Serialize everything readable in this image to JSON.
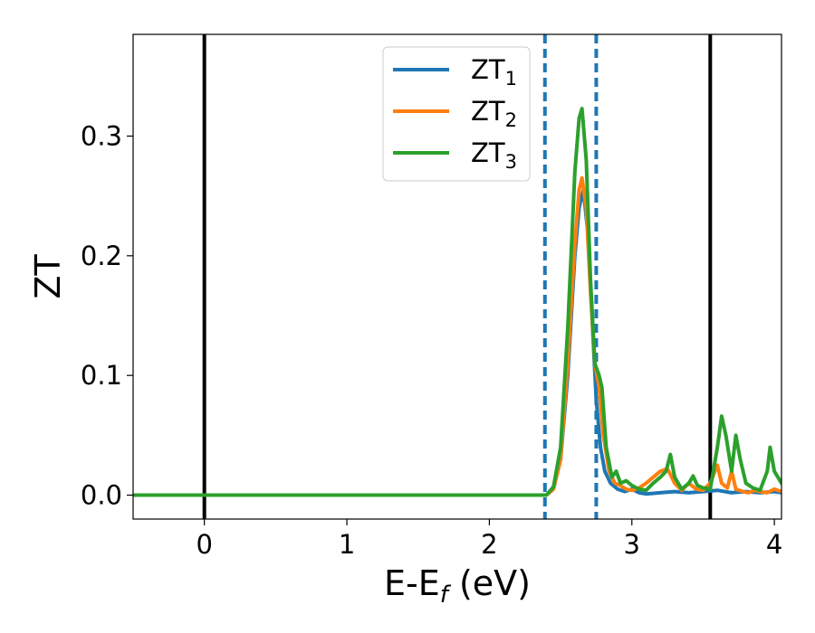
{
  "chart_data": {
    "type": "line",
    "xlabel": "E-E",
    "xlabel_sub": "f",
    "xlabel_unit": " (eV)",
    "ylabel": "ZT",
    "xlim": [
      -0.5,
      4.05
    ],
    "ylim": [
      -0.02,
      0.385
    ],
    "xticks": [
      0,
      1,
      2,
      3,
      4
    ],
    "xtick_labels": [
      "0",
      "1",
      "2",
      "3",
      "4"
    ],
    "yticks": [
      0.0,
      0.1,
      0.2,
      0.3
    ],
    "ytick_labels": [
      "0.0",
      "0.1",
      "0.2",
      "0.3"
    ],
    "grid": false,
    "legend_position": "top-center",
    "vlines": [
      {
        "x": 0.0,
        "style": "solid",
        "color": "#000000"
      },
      {
        "x": 3.55,
        "style": "solid",
        "color": "#000000"
      },
      {
        "x": 2.39,
        "style": "dashed",
        "color": "#1f77b4"
      },
      {
        "x": 2.75,
        "style": "dashed",
        "color": "#1f77b4"
      }
    ],
    "series": [
      {
        "name": "ZT",
        "name_sub": "1",
        "color": "#1f77b4",
        "x": [
          -0.5,
          2.4,
          2.45,
          2.5,
          2.55,
          2.6,
          2.63,
          2.66,
          2.69,
          2.72,
          2.75,
          2.78,
          2.81,
          2.85,
          2.9,
          2.95,
          3.0,
          3.05,
          3.1,
          3.2,
          3.3,
          3.4,
          3.5,
          3.6,
          3.7,
          3.8,
          3.9,
          4.0,
          4.05
        ],
        "y": [
          0.0,
          0.0,
          0.005,
          0.03,
          0.1,
          0.2,
          0.24,
          0.255,
          0.22,
          0.15,
          0.08,
          0.04,
          0.02,
          0.01,
          0.005,
          0.003,
          0.005,
          0.002,
          0.001,
          0.002,
          0.003,
          0.002,
          0.003,
          0.004,
          0.002,
          0.003,
          0.002,
          0.003,
          0.002
        ]
      },
      {
        "name": "ZT",
        "name_sub": "2",
        "color": "#ff7f0e",
        "x": [
          -0.5,
          2.4,
          2.45,
          2.5,
          2.55,
          2.6,
          2.63,
          2.65,
          2.68,
          2.71,
          2.74,
          2.77,
          2.8,
          2.84,
          2.88,
          2.92,
          2.96,
          3.0,
          3.05,
          3.1,
          3.15,
          3.2,
          3.25,
          3.3,
          3.35,
          3.4,
          3.45,
          3.5,
          3.55,
          3.6,
          3.63,
          3.67,
          3.7,
          3.73,
          3.78,
          3.82,
          3.86,
          3.9,
          3.95,
          4.0,
          4.05
        ],
        "y": [
          0.0,
          0.0,
          0.005,
          0.03,
          0.11,
          0.21,
          0.255,
          0.265,
          0.24,
          0.17,
          0.11,
          0.09,
          0.05,
          0.02,
          0.01,
          0.008,
          0.005,
          0.004,
          0.006,
          0.01,
          0.015,
          0.02,
          0.022,
          0.01,
          0.004,
          0.01,
          0.005,
          0.004,
          0.01,
          0.025,
          0.01,
          0.006,
          0.02,
          0.005,
          0.003,
          0.002,
          0.004,
          0.003,
          0.002,
          0.005,
          0.003
        ]
      },
      {
        "name": "ZT",
        "name_sub": "3",
        "color": "#2ca02c",
        "x": [
          -0.5,
          2.4,
          2.45,
          2.5,
          2.55,
          2.6,
          2.63,
          2.65,
          2.68,
          2.71,
          2.74,
          2.77,
          2.79,
          2.82,
          2.86,
          2.89,
          2.92,
          2.96,
          3.0,
          3.05,
          3.1,
          3.15,
          3.2,
          3.24,
          3.27,
          3.3,
          3.35,
          3.4,
          3.43,
          3.46,
          3.5,
          3.55,
          3.6,
          3.63,
          3.66,
          3.7,
          3.73,
          3.76,
          3.8,
          3.85,
          3.9,
          3.95,
          3.97,
          4.0,
          4.05
        ],
        "y": [
          0.0,
          0.0,
          0.007,
          0.04,
          0.14,
          0.27,
          0.315,
          0.323,
          0.28,
          0.18,
          0.11,
          0.1,
          0.09,
          0.04,
          0.015,
          0.02,
          0.01,
          0.012,
          0.008,
          0.005,
          0.004,
          0.01,
          0.015,
          0.02,
          0.034,
          0.015,
          0.005,
          0.01,
          0.016,
          0.008,
          0.006,
          0.005,
          0.04,
          0.066,
          0.05,
          0.02,
          0.05,
          0.03,
          0.01,
          0.006,
          0.004,
          0.02,
          0.04,
          0.02,
          0.01
        ]
      }
    ]
  }
}
